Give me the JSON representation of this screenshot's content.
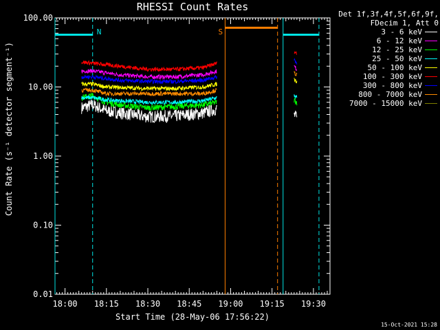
{
  "title": "RHESSI Count Rates",
  "legend": {
    "header_line1": "Det 1f,3f,4f,5f,6f,9f,",
    "header_line2": "FDecim 1, Att 0"
  },
  "footer": "15-Oct-2021 15:28",
  "colors": {
    "background": "#000000",
    "axes": "#ffffff",
    "cyan_markers": "#00e5e5",
    "orange_markers": "#ff7f00"
  },
  "chart_data": {
    "type": "line",
    "title": "RHESSI Count Rates",
    "xlabel": "Start Time (28-May-06 17:56:22)",
    "ylabel": "Count Rate (s⁻¹ detector segment⁻¹)",
    "xlim": [
      "17:56:22",
      "19:36:00"
    ],
    "ylim": [
      0.01,
      100
    ],
    "yscale": "log",
    "x_ticks": [
      "18:00",
      "18:15",
      "18:30",
      "18:45",
      "19:00",
      "19:15",
      "19:30"
    ],
    "y_ticks": [
      "0.01",
      "0.10",
      "1.00",
      "10.00",
      "100.00"
    ],
    "y_tick_values": [
      0.01,
      0.1,
      1,
      10,
      100
    ],
    "legend_position": "outside-right",
    "series": [
      {
        "name": "3 - 6 keV",
        "color": "#ffffff",
        "points": [
          [
            "18:06",
            5
          ],
          [
            "18:10",
            5.5
          ],
          [
            "18:15",
            4.5
          ],
          [
            "18:20",
            4.2
          ],
          [
            "18:30",
            3.7
          ],
          [
            "18:40",
            3.8
          ],
          [
            "18:50",
            4.2
          ],
          [
            "18:55",
            4.8
          ],
          [
            "19:23",
            4
          ],
          [
            "19:24",
            3.5
          ]
        ]
      },
      {
        "name": "6 - 12 keV",
        "color": "#ff00ff",
        "points": [
          [
            "18:06",
            17
          ],
          [
            "18:10",
            17
          ],
          [
            "18:20",
            15
          ],
          [
            "18:30",
            14
          ],
          [
            "18:40",
            14
          ],
          [
            "18:50",
            15
          ],
          [
            "18:55",
            17
          ],
          [
            "19:23",
            20
          ],
          [
            "19:24",
            18
          ]
        ]
      },
      {
        "name": "12 - 25 keV",
        "color": "#00ff00",
        "points": [
          [
            "18:06",
            7
          ],
          [
            "18:10",
            7.5
          ],
          [
            "18:15",
            6
          ],
          [
            "18:20",
            5.5
          ],
          [
            "18:30",
            5
          ],
          [
            "18:40",
            5.2
          ],
          [
            "18:50",
            5.5
          ],
          [
            "18:55",
            6
          ],
          [
            "19:23",
            6.5
          ],
          [
            "19:24",
            6
          ]
        ]
      },
      {
        "name": "25 - 50 keV",
        "color": "#00ffff",
        "points": [
          [
            "18:06",
            7
          ],
          [
            "18:10",
            7
          ],
          [
            "18:15",
            6.5
          ],
          [
            "18:20",
            6.3
          ],
          [
            "18:30",
            6
          ],
          [
            "18:40",
            6
          ],
          [
            "18:50",
            6.3
          ],
          [
            "18:55",
            7
          ],
          [
            "19:23",
            7.5
          ],
          [
            "19:24",
            7
          ]
        ]
      },
      {
        "name": "50 - 100 keV",
        "color": "#ffff00",
        "points": [
          [
            "18:06",
            11
          ],
          [
            "18:10",
            11
          ],
          [
            "18:15",
            10
          ],
          [
            "18:20",
            9.8
          ],
          [
            "18:30",
            9.5
          ],
          [
            "18:40",
            9.5
          ],
          [
            "18:50",
            10
          ],
          [
            "18:55",
            11
          ],
          [
            "19:23",
            13
          ],
          [
            "19:24",
            12
          ]
        ]
      },
      {
        "name": "100 - 300 keV",
        "color": "#ff0000",
        "points": [
          [
            "18:06",
            23
          ],
          [
            "18:10",
            22
          ],
          [
            "18:20",
            20
          ],
          [
            "18:30",
            18
          ],
          [
            "18:40",
            18
          ],
          [
            "18:50",
            19
          ],
          [
            "18:55",
            22
          ],
          [
            "19:23",
            33
          ],
          [
            "19:24",
            30
          ]
        ]
      },
      {
        "name": "300 - 800 keV",
        "color": "#0000ff",
        "points": [
          [
            "18:06",
            14
          ],
          [
            "18:10",
            14
          ],
          [
            "18:20",
            12.5
          ],
          [
            "18:30",
            12
          ],
          [
            "18:40",
            12
          ],
          [
            "18:50",
            12.5
          ],
          [
            "18:55",
            14
          ],
          [
            "19:23",
            25
          ],
          [
            "19:24",
            22
          ]
        ]
      },
      {
        "name": "800 - 7000 keV",
        "color": "#ff8c00",
        "points": [
          [
            "18:06",
            9
          ],
          [
            "18:10",
            9
          ],
          [
            "18:15",
            8
          ],
          [
            "18:20",
            8
          ],
          [
            "18:30",
            8
          ],
          [
            "18:40",
            8
          ],
          [
            "18:50",
            8
          ],
          [
            "18:55",
            9
          ],
          [
            "19:23",
            16
          ],
          [
            "19:24",
            15
          ]
        ]
      },
      {
        "name": "7000 - 15000 keV",
        "color": "#808000",
        "points": []
      }
    ],
    "markers": [
      {
        "type": "bar",
        "label": "",
        "color": "#00e5e5",
        "x": [
          "17:56:22",
          "18:10"
        ],
        "y": 57
      },
      {
        "type": "dashed-vline",
        "label": "N",
        "color": "#00e5e5",
        "x": "18:10"
      },
      {
        "type": "solid-vline",
        "label": "",
        "color": "#00e5e5",
        "x": "17:56:22"
      },
      {
        "type": "solid-vline",
        "label": "S",
        "color": "#ff7f00",
        "x": "18:58"
      },
      {
        "type": "bar",
        "label": "",
        "color": "#ff7f00",
        "x": [
          "18:58",
          "19:17"
        ],
        "y": 72
      },
      {
        "type": "dashed-vline",
        "label": "",
        "color": "#ff7f00",
        "x": "19:17"
      },
      {
        "type": "solid-vline",
        "label": "",
        "color": "#00e5e5",
        "x": "19:19"
      },
      {
        "type": "bar",
        "label": "",
        "color": "#00e5e5",
        "x": [
          "19:19",
          "19:32"
        ],
        "y": 57
      },
      {
        "type": "dashed-vline",
        "label": "",
        "color": "#00e5e5",
        "x": "19:32"
      }
    ]
  }
}
